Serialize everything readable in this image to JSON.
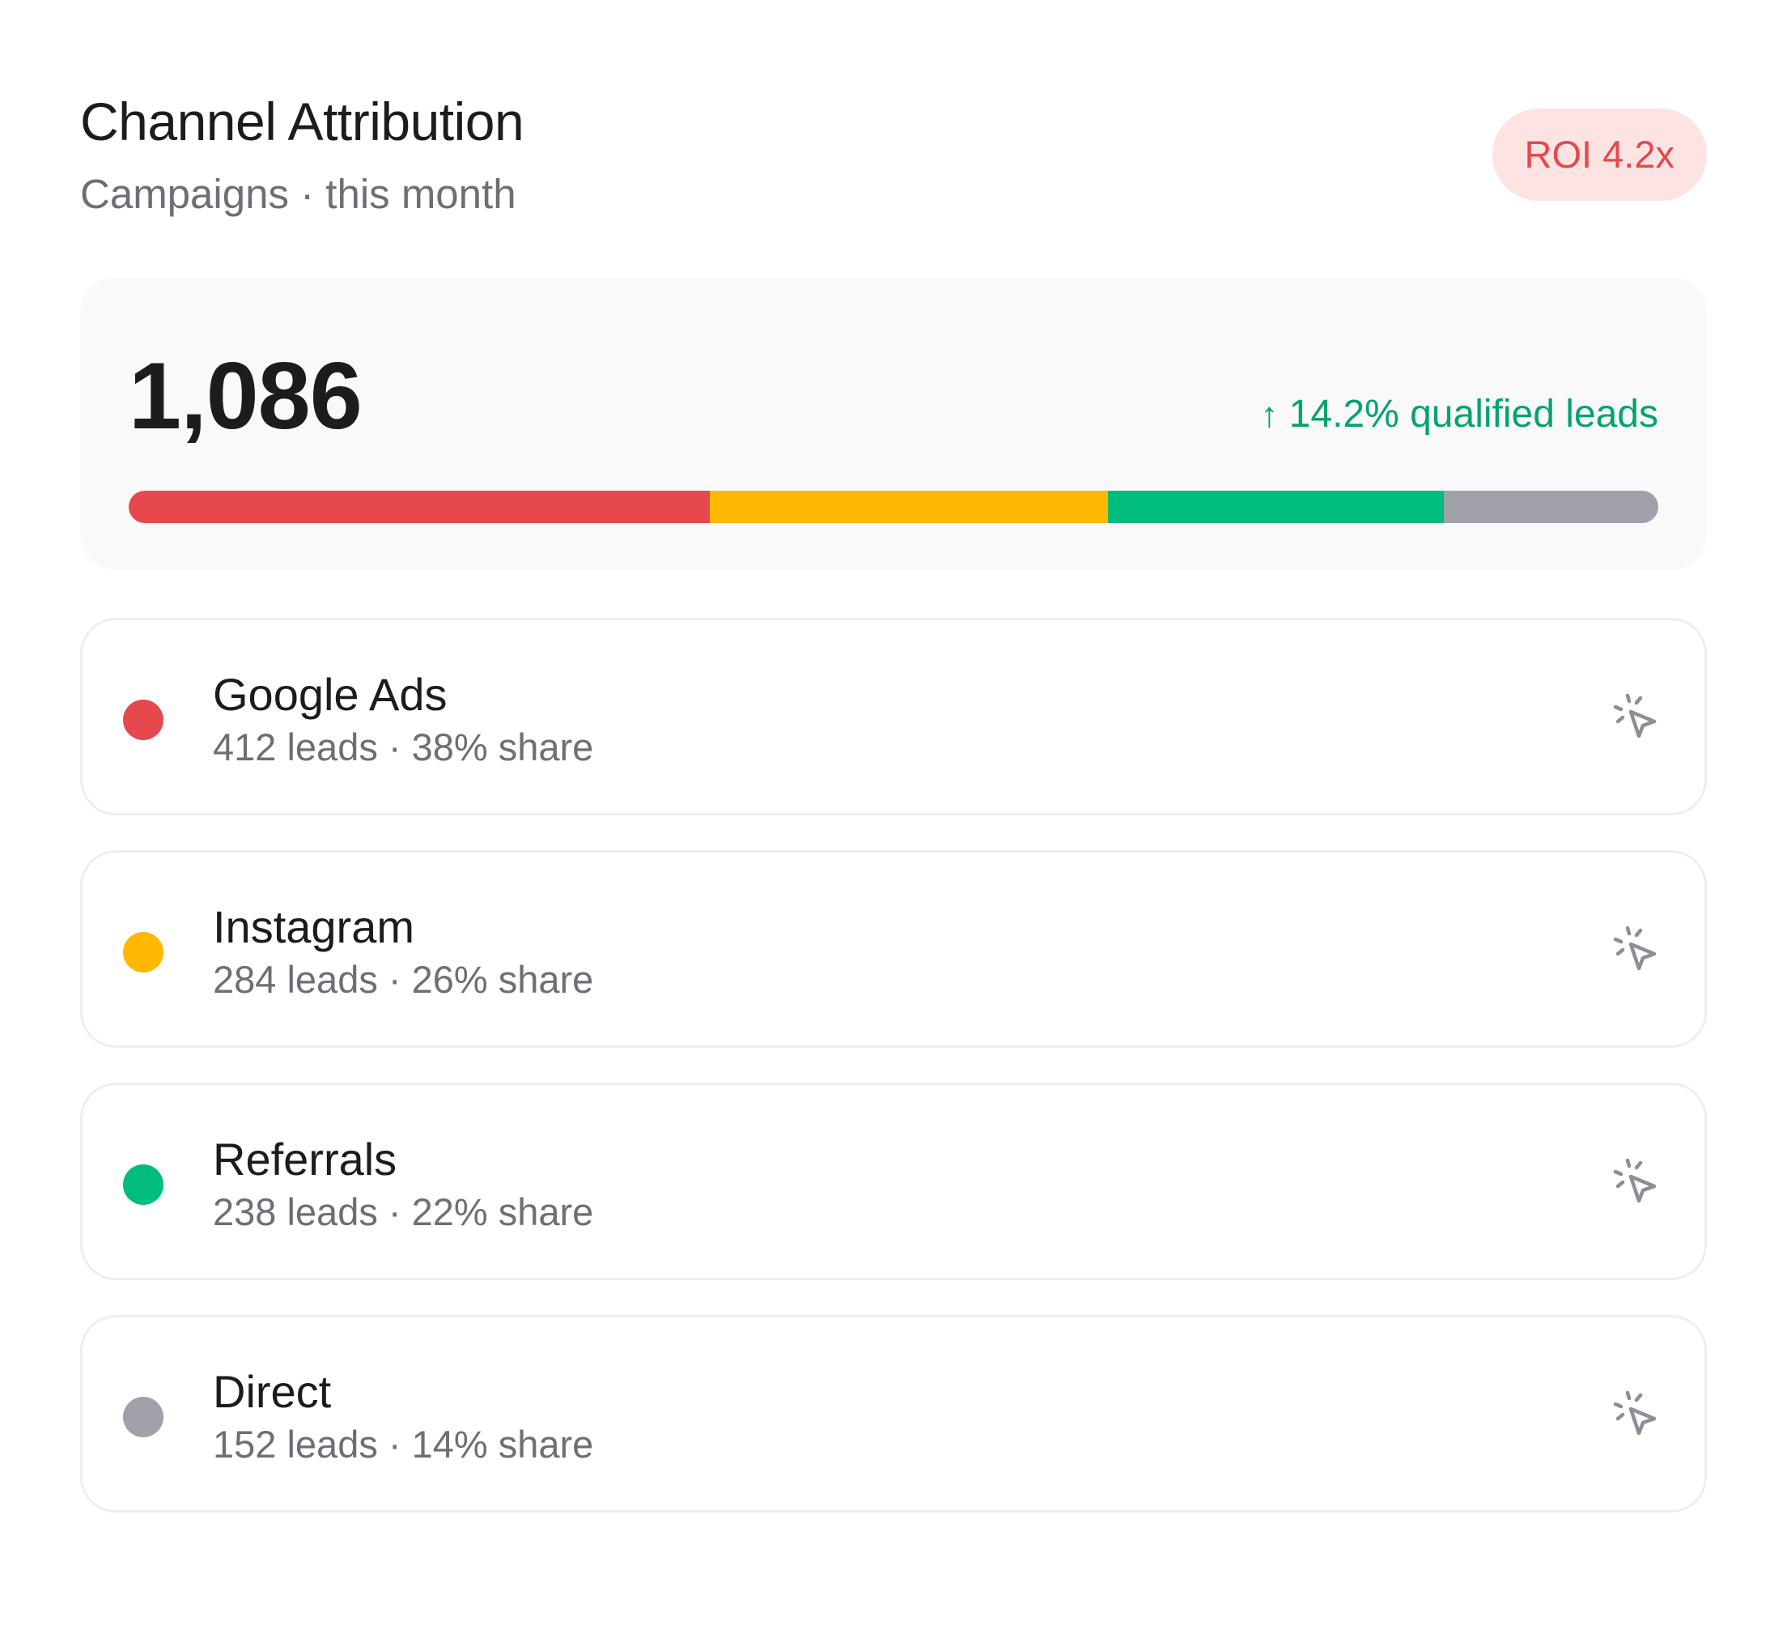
{
  "header": {
    "title": "Channel Attribution",
    "subtitle": "Campaigns · this month",
    "badge": "ROI 4.2x"
  },
  "summary": {
    "total": "1,086",
    "growth_arrow": "↑",
    "growth_text": "14.2% qualified leads",
    "bar": [
      {
        "channel": "Google Ads",
        "share": 38,
        "color": "#e5484d"
      },
      {
        "channel": "Instagram",
        "share": 26,
        "color": "#ffb800"
      },
      {
        "channel": "Referrals",
        "share": 22,
        "color": "#00bd7e"
      },
      {
        "channel": "Direct",
        "share": 14,
        "color": "#a1a1aa"
      }
    ]
  },
  "channels": [
    {
      "name": "Google Ads",
      "meta": "412 leads · 38% share",
      "color": "#e5484d",
      "icon": "cursor-click-icon"
    },
    {
      "name": "Instagram",
      "meta": "284 leads · 26% share",
      "color": "#ffb800",
      "icon": "cursor-click-icon"
    },
    {
      "name": "Referrals",
      "meta": "238 leads · 22% share",
      "color": "#00bd7e",
      "icon": "cursor-click-icon"
    },
    {
      "name": "Direct",
      "meta": "152 leads · 14% share",
      "color": "#a1a1aa",
      "icon": "cursor-click-icon"
    }
  ]
}
